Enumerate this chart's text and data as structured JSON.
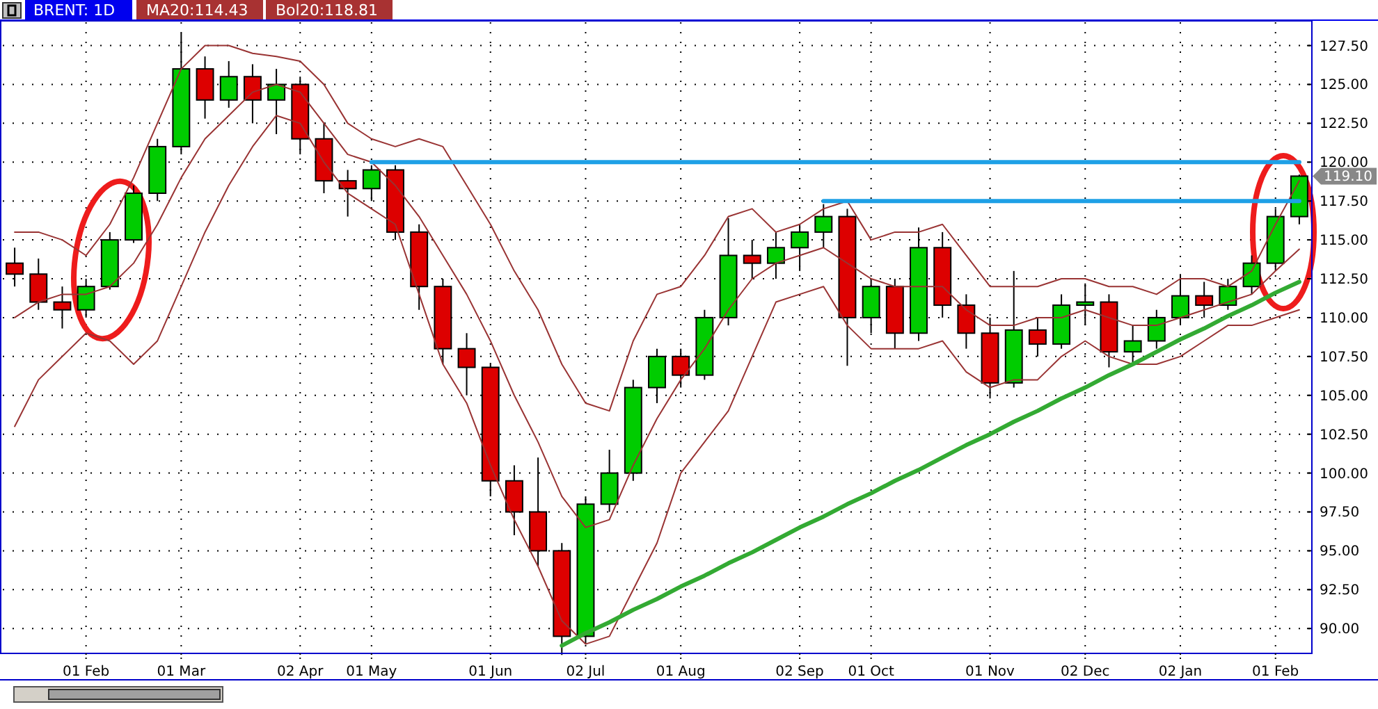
{
  "chart_data": {
    "type": "candlestick",
    "title": "BRENT: 1D",
    "annotations": [
      "MA20:114.43",
      "Bol20:118.81",
      "119.10"
    ],
    "categories": [
      null,
      null,
      null,
      "01 Feb",
      null,
      null,
      null,
      "01 Mar",
      null,
      null,
      null,
      null,
      "02 Apr",
      null,
      null,
      "01 May",
      null,
      null,
      null,
      null,
      "01 Jun",
      null,
      null,
      null,
      "02 Jul",
      null,
      null,
      null,
      "01 Aug",
      null,
      null,
      null,
      null,
      "02 Sep",
      null,
      null,
      "01 Oct",
      null,
      null,
      null,
      null,
      "01 Nov",
      null,
      null,
      null,
      "02 Dec",
      null,
      null,
      null,
      "02 Jan",
      null,
      null,
      null,
      "01 Feb",
      null
    ],
    "ohlc": [
      [
        113.5,
        114.5,
        112,
        112.8
      ],
      [
        112.8,
        113.8,
        110.5,
        111
      ],
      [
        111,
        112,
        109.3,
        110.5
      ],
      [
        110.5,
        112.5,
        110,
        112
      ],
      [
        112,
        115.5,
        111.8,
        115
      ],
      [
        115,
        118.5,
        114.8,
        118
      ],
      [
        118,
        121.5,
        117.5,
        121
      ],
      [
        121,
        128.3,
        120.5,
        126
      ],
      [
        126,
        126.8,
        122.8,
        124
      ],
      [
        124,
        126.5,
        123.5,
        125.5
      ],
      [
        125.5,
        126.3,
        122.5,
        124
      ],
      [
        124,
        126,
        121.8,
        125
      ],
      [
        125,
        125.5,
        120.5,
        121.5
      ],
      [
        121.5,
        122.5,
        118,
        118.8
      ],
      [
        118.8,
        119.5,
        116.5,
        118.3
      ],
      [
        118.3,
        119.8,
        117.5,
        119.5
      ],
      [
        119.5,
        119.8,
        115,
        115.5
      ],
      [
        115.5,
        116,
        110.5,
        112
      ],
      [
        112,
        112.5,
        107,
        108
      ],
      [
        108,
        109,
        105,
        106.8
      ],
      [
        106.8,
        107,
        98.5,
        99.5
      ],
      [
        99.5,
        100.5,
        96,
        97.5
      ],
      [
        97.5,
        101,
        94,
        95
      ],
      [
        95,
        95.5,
        88.3,
        89.5
      ],
      [
        89.5,
        98.5,
        89,
        98
      ],
      [
        98,
        101.5,
        97.5,
        100
      ],
      [
        100,
        106,
        99.5,
        105.5
      ],
      [
        105.5,
        108,
        104.5,
        107.5
      ],
      [
        107.5,
        108,
        105.5,
        106.3
      ],
      [
        106.3,
        110.5,
        106,
        110
      ],
      [
        110,
        116.4,
        109.5,
        114
      ],
      [
        114,
        115,
        112.5,
        113.5
      ],
      [
        113.5,
        115.5,
        112.5,
        114.5
      ],
      [
        114.5,
        116,
        113,
        115.5
      ],
      [
        115.5,
        117.3,
        114.5,
        116.5
      ],
      [
        116.5,
        117,
        106.9,
        110
      ],
      [
        110,
        112.5,
        109,
        112
      ],
      [
        112,
        112.5,
        108,
        109
      ],
      [
        109,
        115.8,
        108.5,
        114.5
      ],
      [
        114.5,
        115.5,
        110,
        110.8
      ],
      [
        110.8,
        111.5,
        108,
        109
      ],
      [
        109,
        110,
        104.8,
        105.8
      ],
      [
        105.8,
        113,
        105.5,
        109.2
      ],
      [
        109.2,
        110,
        107.5,
        108.3
      ],
      [
        108.3,
        111.5,
        108,
        110.8
      ],
      [
        110.8,
        112.2,
        109.5,
        111
      ],
      [
        111,
        111.5,
        106.8,
        107.8
      ],
      [
        107.8,
        109.5,
        107,
        108.5
      ],
      [
        108.5,
        110.5,
        108,
        110
      ],
      [
        110,
        112.8,
        109.5,
        111.4
      ],
      [
        111.4,
        112.3,
        110,
        110.8
      ],
      [
        110.8,
        112.5,
        110.5,
        112
      ],
      [
        112,
        114,
        111.5,
        113.5
      ],
      [
        113.5,
        117,
        113,
        116.5
      ],
      [
        116.5,
        119.2,
        116,
        119.1
      ]
    ],
    "series": [
      {
        "type": "line",
        "color": "#993333",
        "values": [
          115.5,
          115.5,
          115,
          114,
          116,
          119,
          122.5,
          126,
          127.5,
          127.5,
          127,
          126.8,
          126.5,
          125,
          122.5,
          121.5,
          121,
          121.5,
          121,
          118.5,
          116,
          113,
          110.5,
          107,
          104.5,
          104,
          108.5,
          111.5,
          112,
          114,
          116.5,
          117,
          115.5,
          116,
          117,
          117.5,
          115,
          115.5,
          115.5,
          116,
          114,
          112,
          112,
          112,
          112.5,
          112.5,
          112,
          112,
          111.5,
          112.5,
          112.5,
          112,
          113,
          116,
          118.8
        ]
      },
      {
        "type": "line",
        "color": "#993333",
        "values": [
          110,
          111,
          111.5,
          111.5,
          112,
          113.5,
          116,
          119,
          121.5,
          123,
          124.5,
          125,
          124.5,
          122.5,
          120.5,
          120,
          118.5,
          116.5,
          114,
          111.5,
          108.5,
          105,
          102,
          98.5,
          96.5,
          97,
          100.5,
          103.5,
          106,
          108,
          110.5,
          112.5,
          113.5,
          114,
          114.5,
          113.5,
          112.5,
          112,
          112,
          112,
          110.5,
          109.5,
          109.5,
          110,
          110,
          110.5,
          110,
          109.5,
          109.5,
          110,
          110.5,
          111,
          111.5,
          113,
          114.4
        ]
      },
      {
        "type": "line",
        "color": "#993333",
        "values": [
          103,
          106,
          107.5,
          109,
          108.5,
          107,
          108.5,
          112,
          115.5,
          118.5,
          121,
          123,
          122.5,
          120,
          118,
          117,
          116,
          111.5,
          107,
          104.5,
          100.5,
          97,
          94,
          90.5,
          89,
          89.5,
          92.5,
          95.5,
          100,
          102,
          104,
          107.5,
          111,
          111.5,
          112,
          109.5,
          108,
          108,
          108,
          108.5,
          106.5,
          105.5,
          106,
          106,
          107.5,
          108.5,
          107.5,
          107,
          107,
          107.5,
          108.5,
          109.5,
          109.5,
          110,
          110.5
        ]
      },
      {
        "type": "line",
        "color": "#1ea0e6",
        "values": [
          null,
          null,
          null,
          null,
          null,
          null,
          null,
          null,
          null,
          null,
          null,
          null,
          null,
          null,
          null,
          120,
          120,
          120,
          120,
          120,
          120,
          120,
          120,
          120,
          120,
          120,
          120,
          120,
          120,
          120,
          120,
          120,
          120,
          120,
          120,
          120,
          120,
          120,
          120,
          120,
          120,
          120,
          120,
          120,
          120,
          120,
          120,
          120,
          120,
          120,
          120,
          120,
          120,
          120,
          120
        ]
      },
      {
        "type": "line",
        "color": "#1ea0e6",
        "values": [
          null,
          null,
          null,
          null,
          null,
          null,
          null,
          null,
          null,
          null,
          null,
          null,
          null,
          null,
          null,
          null,
          null,
          null,
          null,
          null,
          null,
          null,
          null,
          null,
          null,
          null,
          null,
          null,
          null,
          null,
          null,
          null,
          null,
          null,
          117.5,
          117.5,
          117.5,
          117.5,
          117.5,
          117.5,
          117.5,
          117.5,
          117.5,
          117.5,
          117.5,
          117.5,
          117.5,
          117.5,
          117.5,
          117.5,
          117.5,
          117.5,
          117.5,
          117.5,
          117.5
        ]
      },
      {
        "type": "line",
        "color": "#33aa33",
        "values": [
          null,
          null,
          null,
          null,
          null,
          null,
          null,
          null,
          null,
          null,
          null,
          null,
          null,
          null,
          null,
          null,
          null,
          null,
          null,
          null,
          null,
          null,
          null,
          88.9,
          89.7,
          90.4,
          91.2,
          91.9,
          92.7,
          93.4,
          94.2,
          94.9,
          95.7,
          96.5,
          97.2,
          98,
          98.7,
          99.5,
          100.2,
          101,
          101.8,
          102.5,
          103.3,
          104,
          104.8,
          105.5,
          106.3,
          107,
          107.8,
          108.6,
          109.3,
          110.1,
          110.8,
          111.6,
          112.3
        ]
      }
    ],
    "ylim": [
      88.4,
      129
    ],
    "yticks": [
      {
        "value": 90,
        "label": "90.00"
      },
      {
        "value": 92.5,
        "label": "92.50"
      },
      {
        "value": 95,
        "label": "95.00"
      },
      {
        "value": 97.5,
        "label": "97.50"
      },
      {
        "value": 100,
        "label": "100.00"
      },
      {
        "value": 102.5,
        "label": "102.50"
      },
      {
        "value": 105,
        "label": "105.00"
      },
      {
        "value": 107.5,
        "label": "107.50"
      },
      {
        "value": 110,
        "label": "110.00"
      },
      {
        "value": 112.5,
        "label": "112.50"
      },
      {
        "value": 115,
        "label": "115.00"
      },
      {
        "value": 117.5,
        "label": "117.50"
      },
      {
        "value": 120,
        "label": "120.00"
      },
      {
        "value": 122.5,
        "label": "122.50"
      },
      {
        "value": 125,
        "label": "125.00"
      },
      {
        "value": 127.5,
        "label": "127.50"
      }
    ],
    "grid": true
  }
}
